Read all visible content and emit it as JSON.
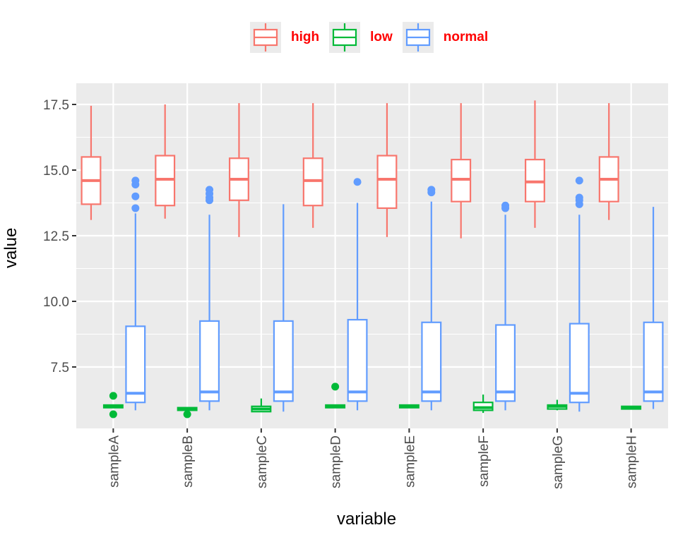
{
  "chart_data": {
    "type": "boxplot",
    "xlabel": "variable",
    "ylabel": "value",
    "ylim": [
      5.0,
      18.0
    ],
    "yticks": [
      7.5,
      10.0,
      12.5,
      15.0,
      17.5
    ],
    "ytick_labels": [
      "7.5",
      "10.0",
      "12.5",
      "15.0",
      "17.5"
    ],
    "categories": [
      "sampleA",
      "sampleB",
      "sampleC",
      "sampleD",
      "sampleE",
      "sampleF",
      "sampleG",
      "sampleH"
    ],
    "grid": true,
    "legend_position": "top",
    "colors": {
      "high": "#F8766D",
      "low": "#00BA38",
      "normal": "#619CFF"
    },
    "legend": {
      "text_color": "#ff0000"
    },
    "series": [
      {
        "name": "high",
        "boxes": [
          {
            "lower": 13.1,
            "q1": 13.7,
            "median": 14.6,
            "q3": 15.5,
            "upper": 17.45,
            "outliers": []
          },
          {
            "lower": 13.15,
            "q1": 13.65,
            "median": 14.65,
            "q3": 15.55,
            "upper": 17.5,
            "outliers": []
          },
          {
            "lower": 12.45,
            "q1": 13.85,
            "median": 14.65,
            "q3": 15.45,
            "upper": 17.55,
            "outliers": []
          },
          {
            "lower": 12.8,
            "q1": 13.65,
            "median": 14.6,
            "q3": 15.45,
            "upper": 17.55,
            "outliers": []
          },
          {
            "lower": 12.45,
            "q1": 13.55,
            "median": 14.65,
            "q3": 15.55,
            "upper": 17.55,
            "outliers": []
          },
          {
            "lower": 12.4,
            "q1": 13.8,
            "median": 14.65,
            "q3": 15.4,
            "upper": 17.55,
            "outliers": []
          },
          {
            "lower": 12.8,
            "q1": 13.8,
            "median": 14.55,
            "q3": 15.4,
            "upper": 17.65,
            "outliers": []
          },
          {
            "lower": 13.1,
            "q1": 13.8,
            "median": 14.65,
            "q3": 15.5,
            "upper": 17.55,
            "outliers": []
          }
        ]
      },
      {
        "name": "low",
        "boxes": [
          {
            "lower": 5.95,
            "q1": 5.95,
            "median": 6.0,
            "q3": 6.05,
            "upper": 6.05,
            "outliers": [
              6.4,
              5.7
            ]
          },
          {
            "lower": 5.85,
            "q1": 5.85,
            "median": 5.9,
            "q3": 5.95,
            "upper": 5.95,
            "outliers": [
              5.7
            ]
          },
          {
            "lower": 5.8,
            "q1": 5.8,
            "median": 5.9,
            "q3": 6.0,
            "upper": 6.3,
            "outliers": []
          },
          {
            "lower": 5.95,
            "q1": 5.95,
            "median": 6.0,
            "q3": 6.05,
            "upper": 6.05,
            "outliers": [
              6.75
            ]
          },
          {
            "lower": 5.95,
            "q1": 5.95,
            "median": 6.0,
            "q3": 6.05,
            "upper": 6.05,
            "outliers": []
          },
          {
            "lower": 5.75,
            "q1": 5.85,
            "median": 5.95,
            "q3": 6.15,
            "upper": 6.45,
            "outliers": []
          },
          {
            "lower": 5.85,
            "q1": 5.9,
            "median": 6.0,
            "q3": 6.05,
            "upper": 6.25,
            "outliers": []
          },
          {
            "lower": 5.9,
            "q1": 5.9,
            "median": 5.95,
            "q3": 6.0,
            "upper": 6.0,
            "outliers": []
          }
        ]
      },
      {
        "name": "normal",
        "boxes": [
          {
            "lower": 5.85,
            "q1": 6.15,
            "median": 6.5,
            "q3": 9.05,
            "upper": 13.35,
            "outliers": [
              13.55,
              14.0,
              14.45,
              14.6
            ]
          },
          {
            "lower": 5.85,
            "q1": 6.2,
            "median": 6.55,
            "q3": 9.25,
            "upper": 13.3,
            "outliers": [
              13.85,
              13.95,
              14.1,
              14.25
            ]
          },
          {
            "lower": 5.8,
            "q1": 6.2,
            "median": 6.55,
            "q3": 9.25,
            "upper": 13.7,
            "outliers": []
          },
          {
            "lower": 5.85,
            "q1": 6.2,
            "median": 6.55,
            "q3": 9.3,
            "upper": 13.75,
            "outliers": [
              14.55
            ]
          },
          {
            "lower": 5.85,
            "q1": 6.2,
            "median": 6.55,
            "q3": 9.2,
            "upper": 13.8,
            "outliers": [
              14.15,
              14.25
            ]
          },
          {
            "lower": 5.85,
            "q1": 6.2,
            "median": 6.55,
            "q3": 9.1,
            "upper": 13.3,
            "outliers": [
              13.55,
              13.65
            ]
          },
          {
            "lower": 5.8,
            "q1": 6.15,
            "median": 6.5,
            "q3": 9.15,
            "upper": 13.3,
            "outliers": [
              13.7,
              13.85,
              13.95,
              14.6
            ]
          },
          {
            "lower": 5.9,
            "q1": 6.2,
            "median": 6.55,
            "q3": 9.2,
            "upper": 13.6,
            "outliers": []
          }
        ]
      }
    ]
  }
}
